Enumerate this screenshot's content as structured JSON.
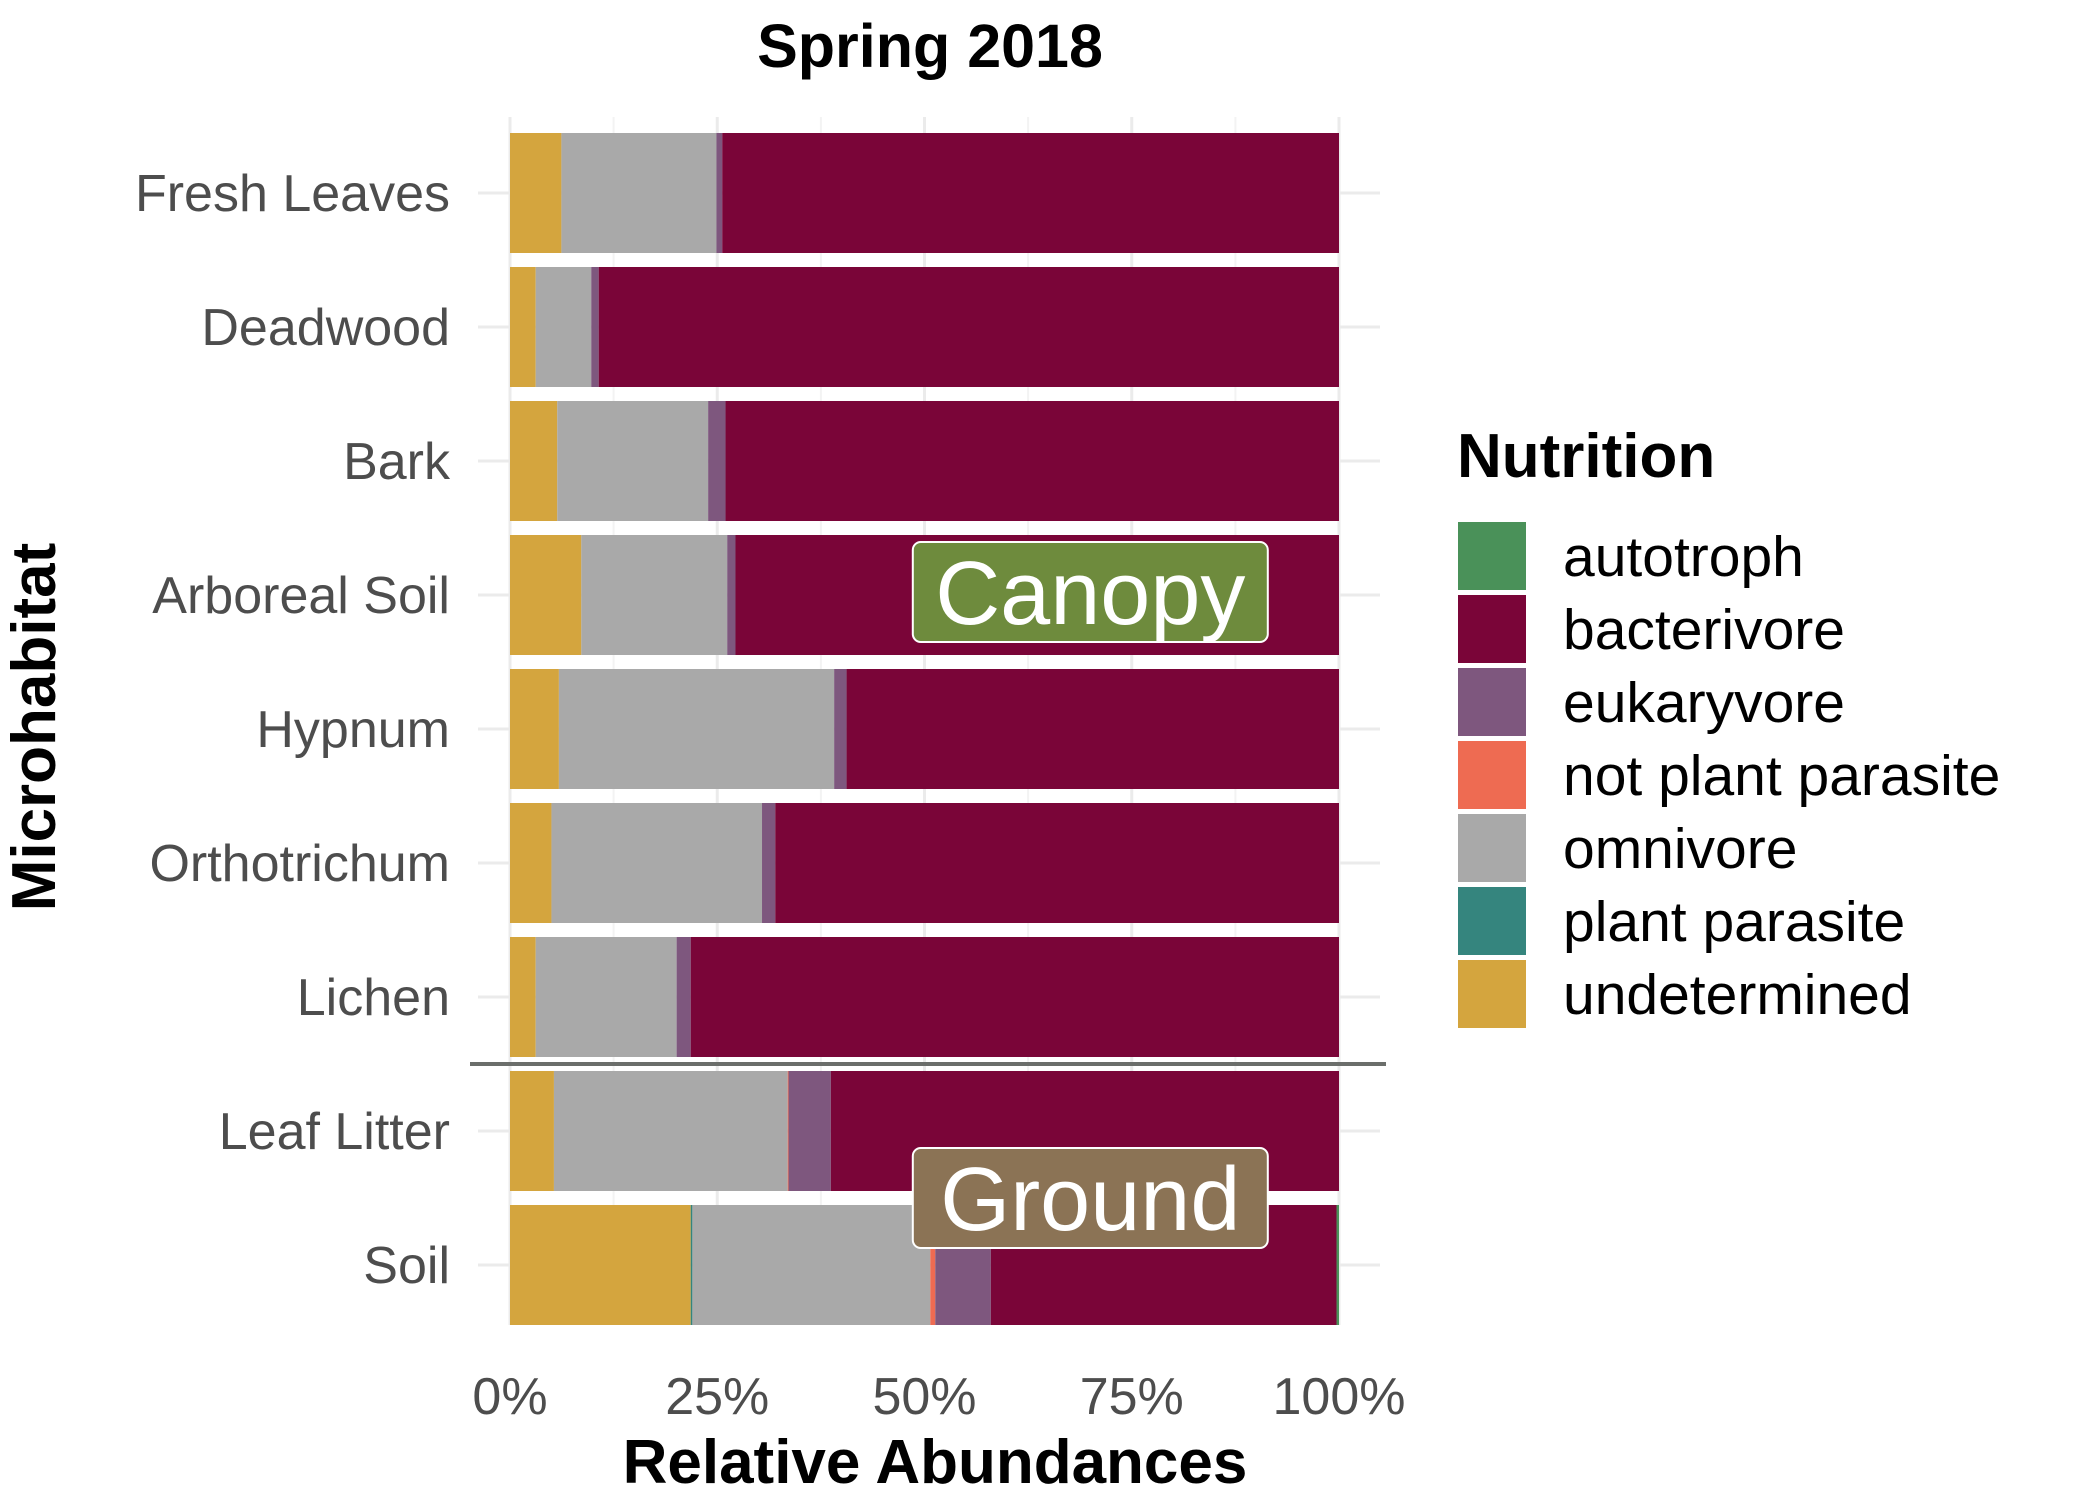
{
  "chart_data": {
    "type": "bar",
    "orientation": "horizontal",
    "stacked": true,
    "title": "Spring 2018",
    "xlabel": "Relative Abundances",
    "ylabel": "Microhabitat",
    "xlim": [
      0,
      1
    ],
    "x_ticks": [
      "0%",
      "25%",
      "50%",
      "75%",
      "100%"
    ],
    "grid": true,
    "legend_position": "right",
    "legend_title": "Nutrition",
    "categories": [
      "Fresh Leaves",
      "Deadwood",
      "Bark",
      "Arboreal Soil",
      "Hypnum",
      "Orthotrichum",
      "Lichen",
      "Leaf Litter",
      "Soil"
    ],
    "series": [
      {
        "name": "undetermined",
        "color": "#D4A53E",
        "values": [
          0.062,
          0.031,
          0.057,
          0.086,
          0.059,
          0.05,
          0.031,
          0.053,
          0.218
        ]
      },
      {
        "name": "plant parasite",
        "color": "#35857E",
        "values": [
          0.0,
          0.0,
          0.0,
          0.0,
          0.0,
          0.0,
          0.0,
          0.0,
          0.002
        ]
      },
      {
        "name": "omnivore",
        "color": "#A9A9A9",
        "values": [
          0.187,
          0.067,
          0.182,
          0.176,
          0.332,
          0.254,
          0.17,
          0.282,
          0.287
        ]
      },
      {
        "name": "not plant parasite",
        "color": "#EE6B52",
        "values": [
          0.0,
          0.0,
          0.0,
          0.0,
          0.0,
          0.0,
          0.0,
          0.001,
          0.006
        ]
      },
      {
        "name": "eukaryvore",
        "color": "#7E577E",
        "values": [
          0.007,
          0.009,
          0.021,
          0.01,
          0.015,
          0.016,
          0.017,
          0.051,
          0.067
        ]
      },
      {
        "name": "bacterivore",
        "color": "#7A0538",
        "values": [
          0.744,
          0.893,
          0.74,
          0.728,
          0.594,
          0.68,
          0.782,
          0.613,
          0.417
        ]
      },
      {
        "name": "autotroph",
        "color": "#4A9159",
        "values": [
          0.0,
          0.0,
          0.0,
          0.0,
          0.0,
          0.0,
          0.0,
          0.0,
          0.003
        ]
      }
    ],
    "legend_order": [
      "autotroph",
      "bacterivore",
      "eukaryvore",
      "not plant parasite",
      "omnivore",
      "plant parasite",
      "undetermined"
    ],
    "annotations": [
      {
        "text": "Canopy",
        "color": "#6E8B3D",
        "row": "Arboreal Soil",
        "x_center": 0.7
      },
      {
        "text": "Ground",
        "color": "#8B7355",
        "row": "Leaf Litter",
        "x_center": 0.7
      }
    ],
    "separator_after": "Lichen"
  }
}
